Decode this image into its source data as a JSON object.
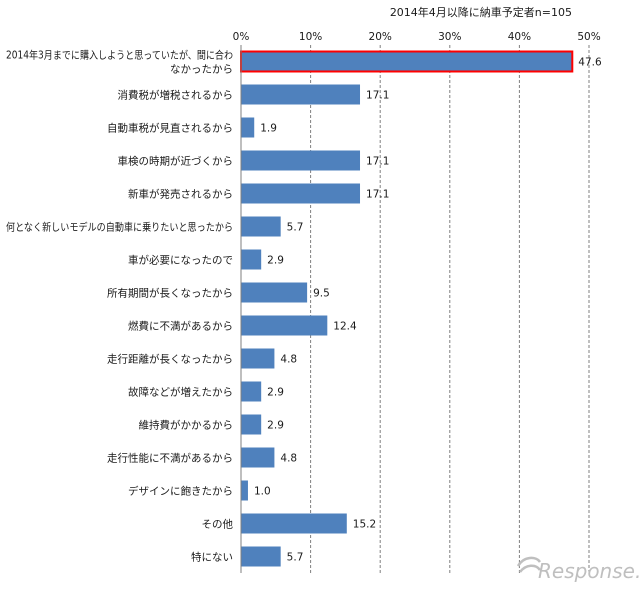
{
  "chart_data": {
    "type": "bar",
    "orientation": "horizontal",
    "title": "2014年4月以降に納車予定者n=105",
    "unit_suffix": "%",
    "xlim": [
      0,
      50
    ],
    "ticks": [
      0,
      10,
      20,
      30,
      40,
      50
    ],
    "tick_labels": [
      "0%",
      "10%",
      "20%",
      "30%",
      "40%",
      "50%"
    ],
    "grid": true,
    "bar_color": "#4f81bd",
    "highlight_color": "#ff0000",
    "highlight_index": 0,
    "categories": [
      "2014年3月までに購入しようと思っていたが、間に合わなかったから",
      "消費税が増税されるから",
      "自動車税が見直されるから",
      "車検の時期が近づくから",
      "新車が発売されるから",
      "何となく新しいモデルの自動車に乗りたいと思ったから",
      "車が必要になったので",
      "所有期間が長くなったから",
      "燃費に不満があるから",
      "走行距離が長くなったから",
      "故障などが増えたから",
      "維持費がかかるから",
      "走行性能に不満があるから",
      "デザインに飽きたから",
      "その他",
      "特にない"
    ],
    "category_lines": [
      [
        "2014年3月までに購入しようと思っていたが、間に合わ",
        "なかったから"
      ],
      [
        "消費税が増税されるから"
      ],
      [
        "自動車税が見直されるから"
      ],
      [
        "車検の時期が近づくから"
      ],
      [
        "新車が発売されるから"
      ],
      [
        "何となく新しいモデルの自動車に乗りたいと思ったから"
      ],
      [
        "車が必要になったので"
      ],
      [
        "所有期間が長くなったから"
      ],
      [
        "燃費に不満があるから"
      ],
      [
        "走行距離が長くなったから"
      ],
      [
        "故障などが増えたから"
      ],
      [
        "維持費がかかるから"
      ],
      [
        "走行性能に不満があるから"
      ],
      [
        "デザインに飽きたから"
      ],
      [
        "その他"
      ],
      [
        "特にない"
      ]
    ],
    "values": [
      47.6,
      17.1,
      1.9,
      17.1,
      17.1,
      5.7,
      2.9,
      9.5,
      12.4,
      4.8,
      2.9,
      2.9,
      4.8,
      1.0,
      15.2,
      5.7
    ],
    "value_labels": [
      "47.6",
      "17.1",
      "1.9",
      "17.1",
      "17.1",
      "5.7",
      "2.9",
      "9.5",
      "12.4",
      "4.8",
      "2.9",
      "2.9",
      "4.8",
      "1.0",
      "15.2",
      "5.7"
    ]
  },
  "watermark": {
    "text": "Response.",
    "color": "#bfbfbf"
  }
}
